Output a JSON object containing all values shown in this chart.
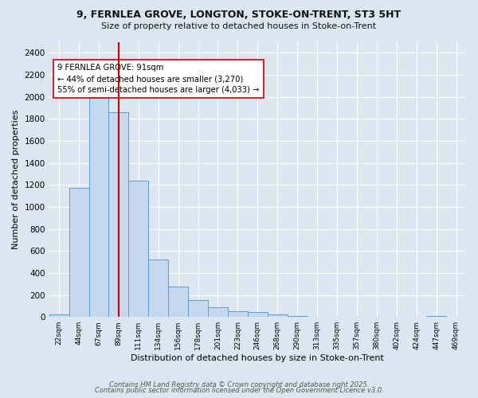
{
  "title_line1": "9, FERNLEA GROVE, LONGTON, STOKE-ON-TRENT, ST3 5HT",
  "title_line2": "Size of property relative to detached houses in Stoke-on-Trent",
  "xlabel": "Distribution of detached houses by size in Stoke-on-Trent",
  "ylabel": "Number of detached properties",
  "bar_labels": [
    "22sqm",
    "44sqm",
    "67sqm",
    "89sqm",
    "111sqm",
    "134sqm",
    "156sqm",
    "178sqm",
    "201sqm",
    "223sqm",
    "246sqm",
    "268sqm",
    "290sqm",
    "313sqm",
    "335sqm",
    "357sqm",
    "380sqm",
    "402sqm",
    "424sqm",
    "447sqm",
    "469sqm"
  ],
  "bar_values": [
    25,
    1170,
    1990,
    1860,
    1240,
    520,
    275,
    155,
    90,
    55,
    45,
    20,
    10,
    5,
    5,
    3,
    2,
    2,
    2,
    10,
    2
  ],
  "bar_color": "#c5d8ed",
  "bar_edge_color": "#5b9bd5",
  "background_color": "#dce6f0",
  "vline_x_index": 3,
  "vline_color": "#cc0000",
  "annotation_text": "9 FERNLEA GROVE: 91sqm\n← 44% of detached houses are smaller (3,270)\n55% of semi-detached houses are larger (4,033) →",
  "annotation_box_color": "white",
  "annotation_box_edgecolor": "#cc0000",
  "ylim_max": 2500,
  "yticks": [
    0,
    200,
    400,
    600,
    800,
    1000,
    1200,
    1400,
    1600,
    1800,
    2000,
    2200,
    2400
  ],
  "footer_line1": "Contains HM Land Registry data © Crown copyright and database right 2025.",
  "footer_line2": "Contains public sector information licensed under the Open Government Licence v3.0.",
  "grid_color": "#ffffff"
}
